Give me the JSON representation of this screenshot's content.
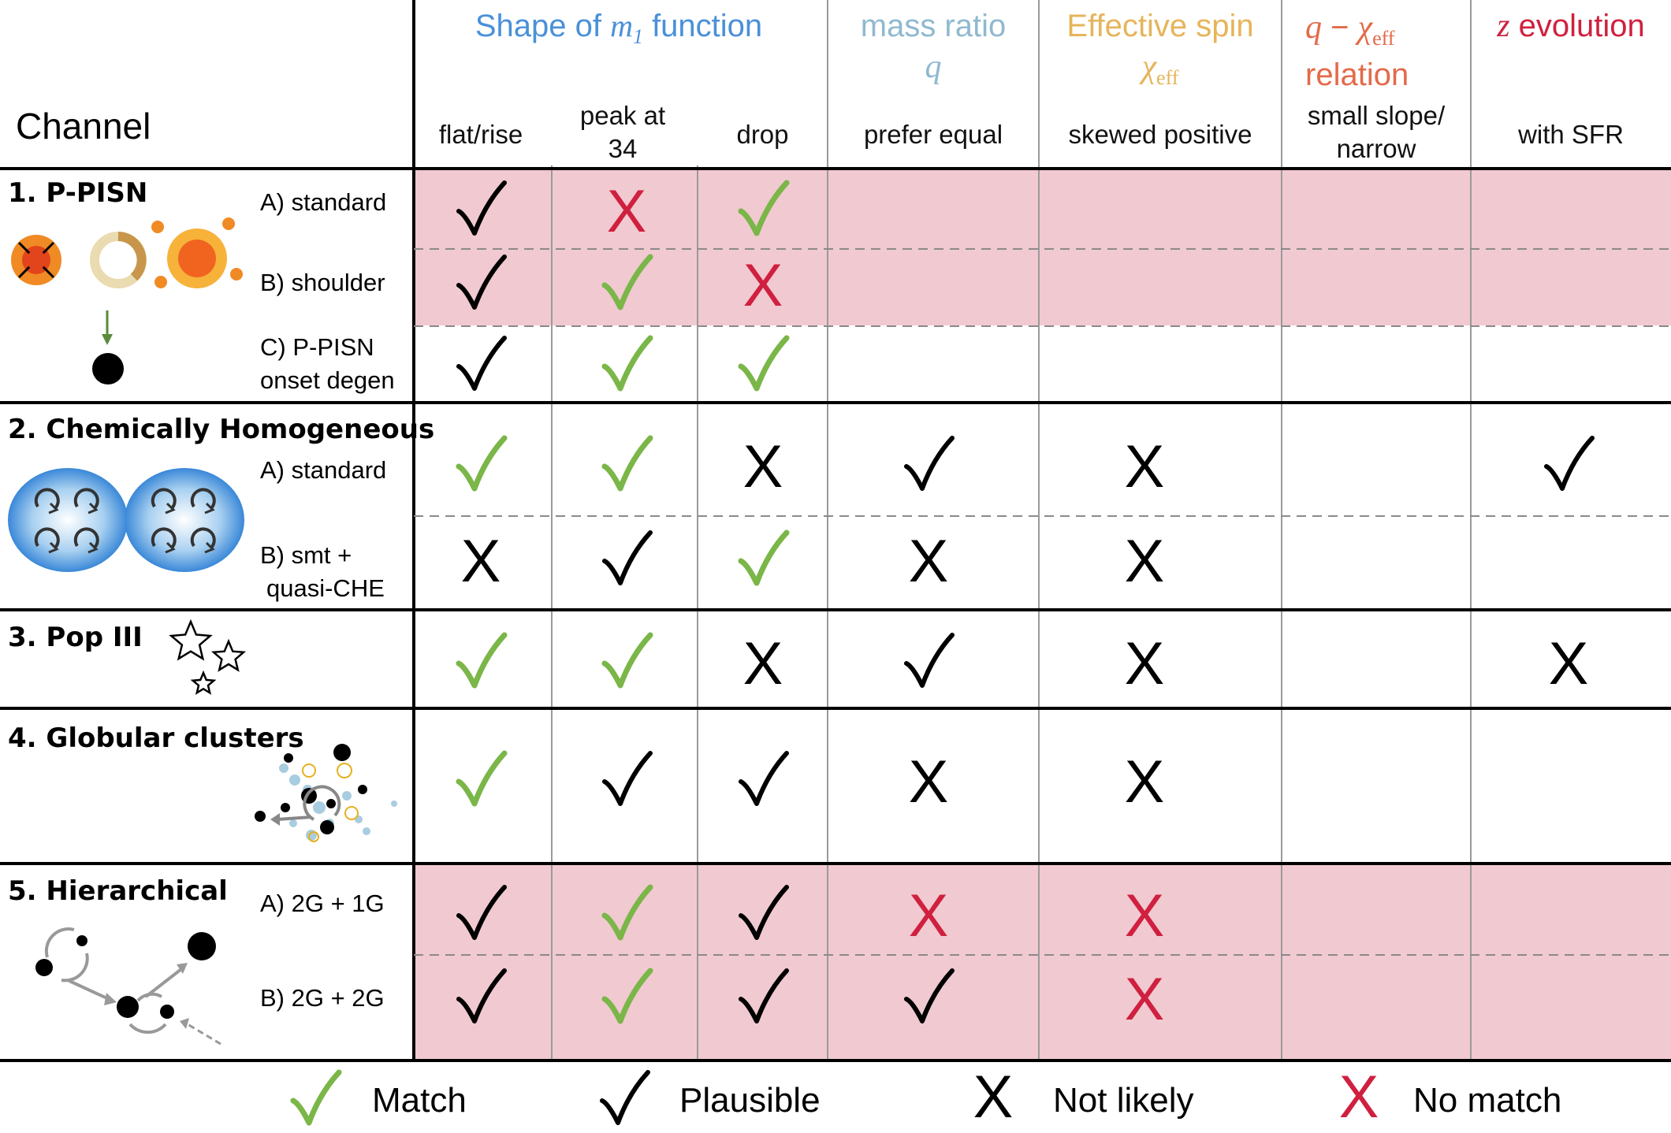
{
  "colors": {
    "match": "#7ab648",
    "plausible": "#000000",
    "not_likely": "#000000",
    "no_match": "#d0203f",
    "row_highlight": "#f1c9d1",
    "hdr_shape": "#4a90d9",
    "hdr_mass": "#8fb9cf",
    "hdr_spin": "#e6b45a",
    "hdr_qchi": "#e36a4a",
    "hdr_z": "#d0203f"
  },
  "header": {
    "channel": "Channel",
    "shape_prefix": "Shape of ",
    "shape_var": "m",
    "shape_sub": "1",
    "shape_suffix": " function",
    "shape_subcols": [
      "flat/rise",
      "peak at",
      "34",
      "drop"
    ],
    "mass_line1": "mass ratio",
    "mass_var": "q",
    "mass_sub": "prefer equal",
    "spin_line1": "Effective spin",
    "spin_var": "χ",
    "spin_var_sub": "eff",
    "spin_sub": "skewed positive",
    "qchi_var_q": "q",
    "qchi_dash": " − ",
    "qchi_var_chi": "χ",
    "qchi_var_sub": "eff",
    "qchi_line2": "relation",
    "qchi_sub1": "small slope/",
    "qchi_sub2": "narrow",
    "z_var": "z",
    "z_suffix": " evolution",
    "z_sub": "with SFR"
  },
  "channels": [
    {
      "title": "1. P-PISN",
      "icon": "ppisn-icon",
      "variants": [
        {
          "label": "A) standard",
          "marks": [
            "plausible",
            "no_match",
            "match",
            "",
            "",
            "",
            ""
          ]
        },
        {
          "label": "B) shoulder",
          "marks": [
            "plausible",
            "match",
            "no_match",
            "",
            "",
            "",
            ""
          ]
        },
        {
          "label": "C) P-PISN",
          "label2": "onset degen",
          "marks": [
            "plausible",
            "match",
            "match",
            "",
            "",
            "",
            ""
          ]
        }
      ]
    },
    {
      "title": "2. Chemically Homogeneous",
      "icon": "che-binary-icon",
      "variants": [
        {
          "label": "A) standard",
          "marks": [
            "match",
            "match",
            "not_likely",
            "plausible",
            "not_likely",
            "",
            "plausible"
          ]
        },
        {
          "label": "B) smt +",
          "label2": "quasi-CHE",
          "marks": [
            "not_likely",
            "plausible",
            "match",
            "not_likely",
            "not_likely",
            "",
            ""
          ]
        }
      ]
    },
    {
      "title": "3. Pop III",
      "icon": "stars-icon",
      "variants": [
        {
          "label": "",
          "marks": [
            "match",
            "match",
            "not_likely",
            "plausible",
            "not_likely",
            "",
            "not_likely"
          ]
        }
      ]
    },
    {
      "title": "4. Globular clusters",
      "icon": "cluster-icon",
      "variants": [
        {
          "label": "",
          "marks": [
            "match",
            "plausible",
            "plausible",
            "not_likely",
            "not_likely",
            "",
            ""
          ]
        }
      ]
    },
    {
      "title": "5. Hierarchical",
      "icon": "hierarchical-icon",
      "variants": [
        {
          "label": "A) 2G + 1G",
          "marks": [
            "plausible",
            "match",
            "plausible",
            "no_match",
            "no_match",
            "",
            ""
          ]
        },
        {
          "label": "B) 2G + 2G",
          "marks": [
            "plausible",
            "match",
            "plausible",
            "plausible",
            "no_match",
            "",
            ""
          ]
        }
      ]
    }
  ],
  "legend": {
    "match": "Match",
    "plausible": "Plausible",
    "not_likely": "Not likely",
    "no_match": "No match"
  }
}
